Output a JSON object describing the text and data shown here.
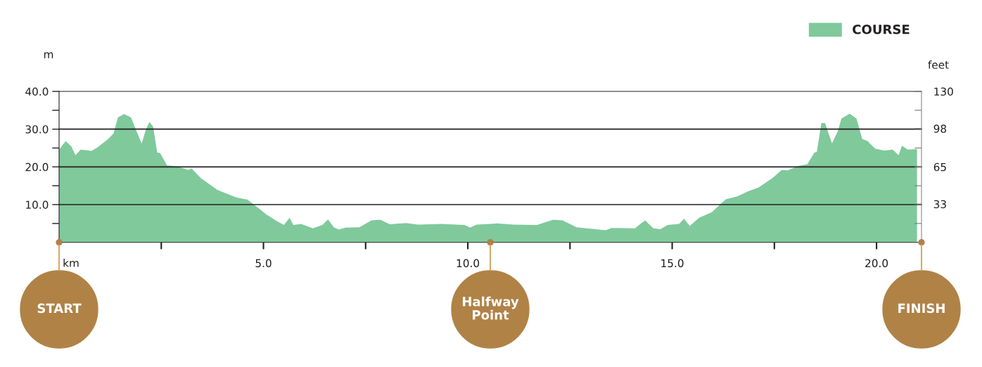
{
  "chart_data": {
    "type": "area",
    "xlabel": "km",
    "ylabel": "m",
    "y2label": "feet",
    "x": [
      0,
      0.16,
      0.3,
      0.4,
      0.53,
      0.79,
      0.93,
      1.19,
      1.33,
      1.44,
      1.59,
      1.76,
      1.87,
      2.02,
      2.13,
      2.21,
      2.3,
      2.4,
      2.47,
      2.64,
      2.9,
      3.16,
      3.24,
      3.47,
      3.87,
      4.33,
      4.61,
      4.9,
      5.07,
      5.3,
      5.5,
      5.64,
      5.73,
      5.92,
      6.21,
      6.44,
      6.58,
      6.72,
      6.84,
      7.01,
      7.35,
      7.64,
      7.86,
      8.09,
      8.49,
      8.78,
      9.35,
      9.92,
      10.06,
      10.21,
      10.55,
      10.72,
      11.12,
      11.69,
      12.09,
      12.32,
      12.66,
      13.12,
      13.37,
      13.52,
      14.09,
      14.26,
      14.34,
      14.54,
      14.71,
      14.89,
      15.17,
      15.29,
      15.43,
      15.66,
      15.97,
      16.31,
      16.6,
      16.83,
      17.11,
      17.45,
      17.68,
      17.83,
      18.08,
      18.31,
      18.48,
      18.54,
      18.65,
      18.74,
      18.91,
      19.05,
      19.14,
      19.34,
      19.51,
      19.65,
      19.77,
      19.97,
      20.19,
      20.39,
      20.54,
      20.62,
      20.76,
      20.99
    ],
    "series": [
      {
        "name": "COURSE",
        "color": "#7fc99b",
        "values": [
          24.6,
          26.8,
          25.4,
          23.1,
          24.6,
          24.2,
          25.1,
          27.3,
          28.8,
          33.1,
          34.0,
          33.1,
          30.1,
          26.2,
          30.1,
          31.9,
          30.7,
          23.8,
          23.7,
          20.4,
          20.1,
          19.2,
          19.6,
          17.0,
          13.9,
          11.9,
          11.3,
          8.9,
          7.4,
          5.8,
          4.6,
          6.5,
          4.6,
          4.9,
          3.7,
          4.6,
          6.1,
          4.0,
          3.4,
          3.9,
          4.0,
          5.8,
          6.0,
          4.8,
          5.1,
          4.7,
          4.9,
          4.6,
          3.9,
          4.7,
          4.9,
          5.0,
          4.7,
          4.6,
          6.0,
          5.8,
          4.0,
          3.5,
          3.2,
          3.8,
          3.7,
          5.2,
          5.8,
          3.7,
          3.5,
          4.6,
          4.9,
          6.3,
          4.3,
          6.5,
          8.0,
          11.4,
          12.2,
          13.4,
          14.5,
          17.0,
          19.2,
          19.1,
          20.2,
          20.7,
          23.8,
          24.0,
          31.6,
          31.6,
          26.2,
          29.4,
          32.8,
          34.1,
          32.8,
          27.4,
          26.9,
          24.8,
          24.3,
          24.6,
          23.1,
          25.6,
          24.6,
          24.7
        ]
      }
    ],
    "xlim": [
      0,
      21.1
    ],
    "xticks": [
      {
        "value": 2.5,
        "label": null
      },
      {
        "value": 5,
        "label": "5.0"
      },
      {
        "value": 7.5,
        "label": null
      },
      {
        "value": 10,
        "label": "10.0"
      },
      {
        "value": 12.5,
        "label": null
      },
      {
        "value": 15,
        "label": "15.0"
      },
      {
        "value": 17.5,
        "label": null
      },
      {
        "value": 20,
        "label": "20.0"
      }
    ],
    "ylim": [
      0,
      40
    ],
    "yticks": [
      {
        "value": 5,
        "label": null
      },
      {
        "value": 10,
        "label": "10.0"
      },
      {
        "value": 15,
        "label": null
      },
      {
        "value": 20,
        "label": "20.0"
      },
      {
        "value": 25,
        "label": null
      },
      {
        "value": 30,
        "label": "30.0"
      },
      {
        "value": 35,
        "label": null
      },
      {
        "value": 40,
        "label": "40.0"
      }
    ],
    "y2lim": [
      0,
      130
    ],
    "y2ticks": [
      {
        "value": 16.25,
        "label": null
      },
      33,
      {
        "value": 48.75,
        "label": null
      },
      65,
      {
        "value": 81.25,
        "label": null
      },
      98,
      {
        "value": 113.75,
        "label": null
      },
      130
    ],
    "ref_lines": [
      {
        "axis": "y",
        "value": 10,
        "color": "#231f20"
      },
      {
        "axis": "y",
        "value": 20,
        "color": "#231f20"
      },
      {
        "axis": "y",
        "value": 30,
        "color": "#231f20"
      }
    ],
    "annotations": [
      "START",
      "Halfway\nPoint",
      "FINISH"
    ],
    "legend": "top right"
  }
}
